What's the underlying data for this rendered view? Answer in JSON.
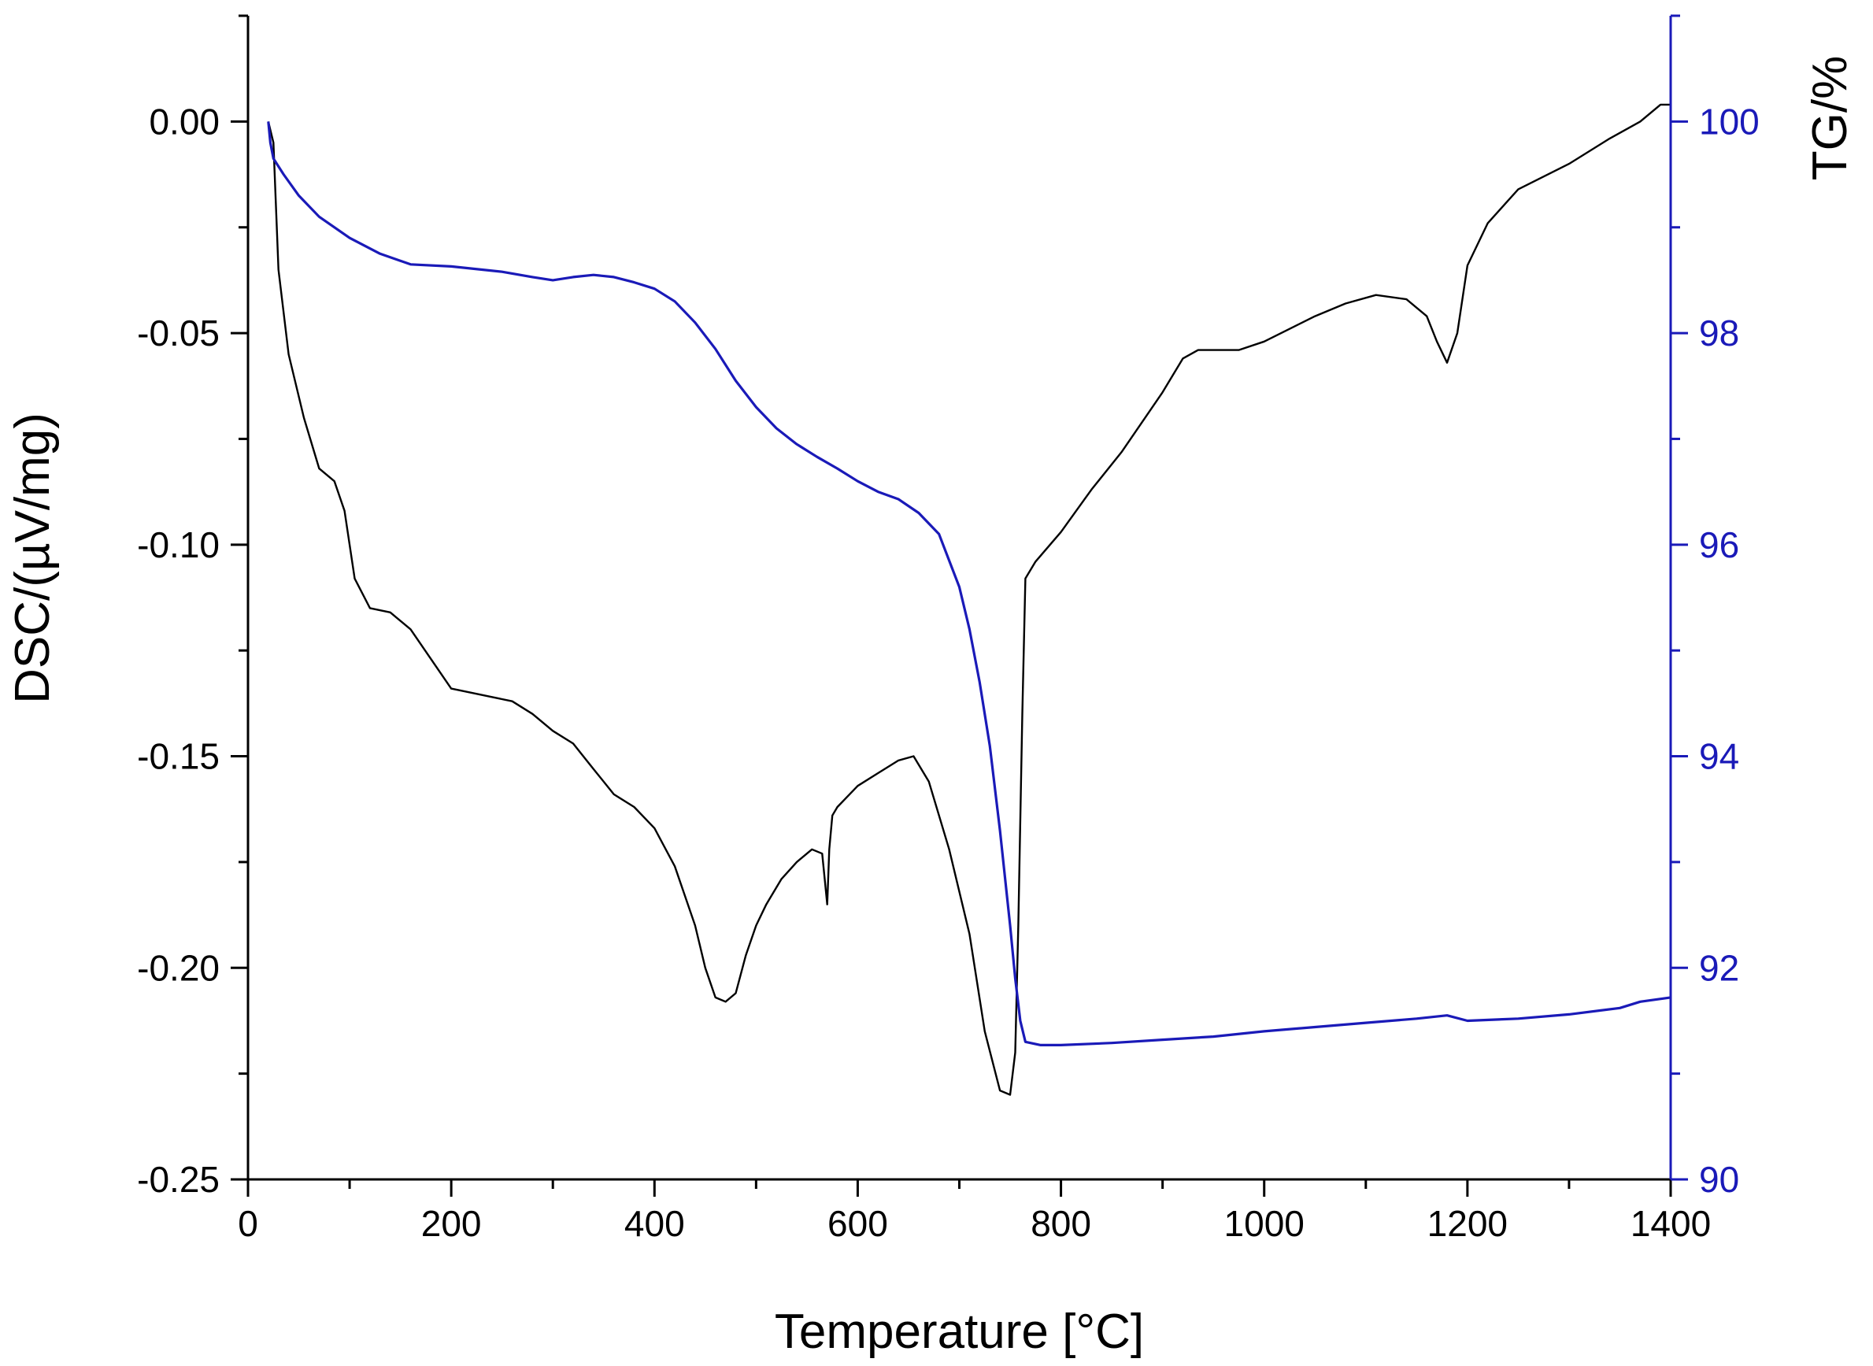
{
  "chart_data": {
    "type": "line",
    "title": "",
    "xlabel": "Temperature [°C]",
    "ylabel": "DSC/(µV/mg)",
    "y2label": "TG/%",
    "xlim": [
      0,
      1400
    ],
    "ylim": [
      -0.25,
      0.025
    ],
    "y2lim": [
      90,
      101
    ],
    "x_ticks": [
      0,
      200,
      400,
      600,
      800,
      1000,
      1200,
      1400
    ],
    "x_tick_labels": [
      "0",
      "200",
      "400",
      "600",
      "800",
      "1000",
      "1200",
      "1400"
    ],
    "y_ticks": [
      0.0,
      -0.05,
      -0.1,
      -0.15,
      -0.2,
      -0.25
    ],
    "y_tick_labels": [
      "0.00",
      "-0.05",
      "-0.10",
      "-0.15",
      "-0.20",
      "-0.25"
    ],
    "y2_ticks": [
      100,
      98,
      96,
      94,
      92,
      90
    ],
    "y2_tick_labels": [
      "100",
      "98",
      "96",
      "94",
      "92",
      "90"
    ],
    "grid": false,
    "legend": "none",
    "colors": {
      "dsc": "#000000",
      "tg": "#1a1ab8",
      "right_axis": "#1a1ab8",
      "axis": "#000000"
    },
    "series": [
      {
        "axis": "left",
        "x": [
          20,
          25,
          30,
          40,
          55,
          70,
          85,
          95,
          105,
          120,
          140,
          160,
          180,
          200,
          220,
          240,
          260,
          280,
          300,
          320,
          340,
          360,
          380,
          400,
          420,
          440,
          450,
          460,
          470,
          480,
          490,
          500,
          510,
          525,
          540,
          555,
          565,
          570,
          572,
          575,
          580,
          600,
          620,
          640,
          655,
          670,
          690,
          710,
          725,
          740,
          750,
          755,
          758,
          762,
          765,
          775,
          800,
          830,
          860,
          900,
          920,
          935,
          950,
          975,
          1000,
          1025,
          1050,
          1080,
          1110,
          1140,
          1160,
          1170,
          1180,
          1190,
          1200,
          1220,
          1250,
          1300,
          1340,
          1370,
          1390,
          1400
        ],
        "y": [
          0.0,
          -0.005,
          -0.035,
          -0.055,
          -0.07,
          -0.082,
          -0.085,
          -0.092,
          -0.108,
          -0.115,
          -0.116,
          -0.12,
          -0.127,
          -0.134,
          -0.135,
          -0.136,
          -0.137,
          -0.14,
          -0.144,
          -0.147,
          -0.153,
          -0.159,
          -0.162,
          -0.167,
          -0.176,
          -0.19,
          -0.2,
          -0.207,
          -0.208,
          -0.206,
          -0.197,
          -0.19,
          -0.185,
          -0.179,
          -0.175,
          -0.172,
          -0.173,
          -0.185,
          -0.172,
          -0.164,
          -0.162,
          -0.157,
          -0.154,
          -0.151,
          -0.15,
          -0.156,
          -0.172,
          -0.192,
          -0.215,
          -0.229,
          -0.23,
          -0.22,
          -0.19,
          -0.14,
          -0.108,
          -0.104,
          -0.097,
          -0.087,
          -0.078,
          -0.064,
          -0.056,
          -0.054,
          -0.054,
          -0.054,
          -0.052,
          -0.049,
          -0.046,
          -0.043,
          -0.041,
          -0.042,
          -0.046,
          -0.052,
          -0.057,
          -0.05,
          -0.034,
          -0.024,
          -0.016,
          -0.01,
          -0.004,
          0.0,
          0.004,
          0.004
        ]
      },
      {
        "axis": "right",
        "x": [
          20,
          22,
          25,
          35,
          50,
          70,
          100,
          130,
          160,
          200,
          250,
          280,
          300,
          320,
          340,
          360,
          380,
          400,
          420,
          440,
          460,
          480,
          500,
          520,
          540,
          560,
          580,
          600,
          620,
          640,
          660,
          680,
          700,
          710,
          720,
          730,
          740,
          750,
          755,
          760,
          765,
          780,
          800,
          850,
          900,
          950,
          1000,
          1050,
          1100,
          1150,
          1180,
          1200,
          1250,
          1300,
          1350,
          1370,
          1400
        ],
        "y": [
          100.0,
          99.8,
          99.65,
          99.5,
          99.3,
          99.1,
          98.9,
          98.75,
          98.65,
          98.63,
          98.58,
          98.53,
          98.5,
          98.53,
          98.55,
          98.53,
          98.48,
          98.42,
          98.3,
          98.1,
          97.85,
          97.55,
          97.3,
          97.1,
          96.95,
          96.83,
          96.72,
          96.6,
          96.5,
          96.43,
          96.3,
          96.1,
          95.6,
          95.2,
          94.7,
          94.1,
          93.3,
          92.4,
          91.9,
          91.5,
          91.3,
          91.27,
          91.27,
          91.29,
          91.32,
          91.35,
          91.4,
          91.44,
          91.48,
          91.52,
          91.55,
          91.5,
          91.52,
          91.56,
          91.62,
          91.68,
          91.72
        ]
      }
    ]
  }
}
